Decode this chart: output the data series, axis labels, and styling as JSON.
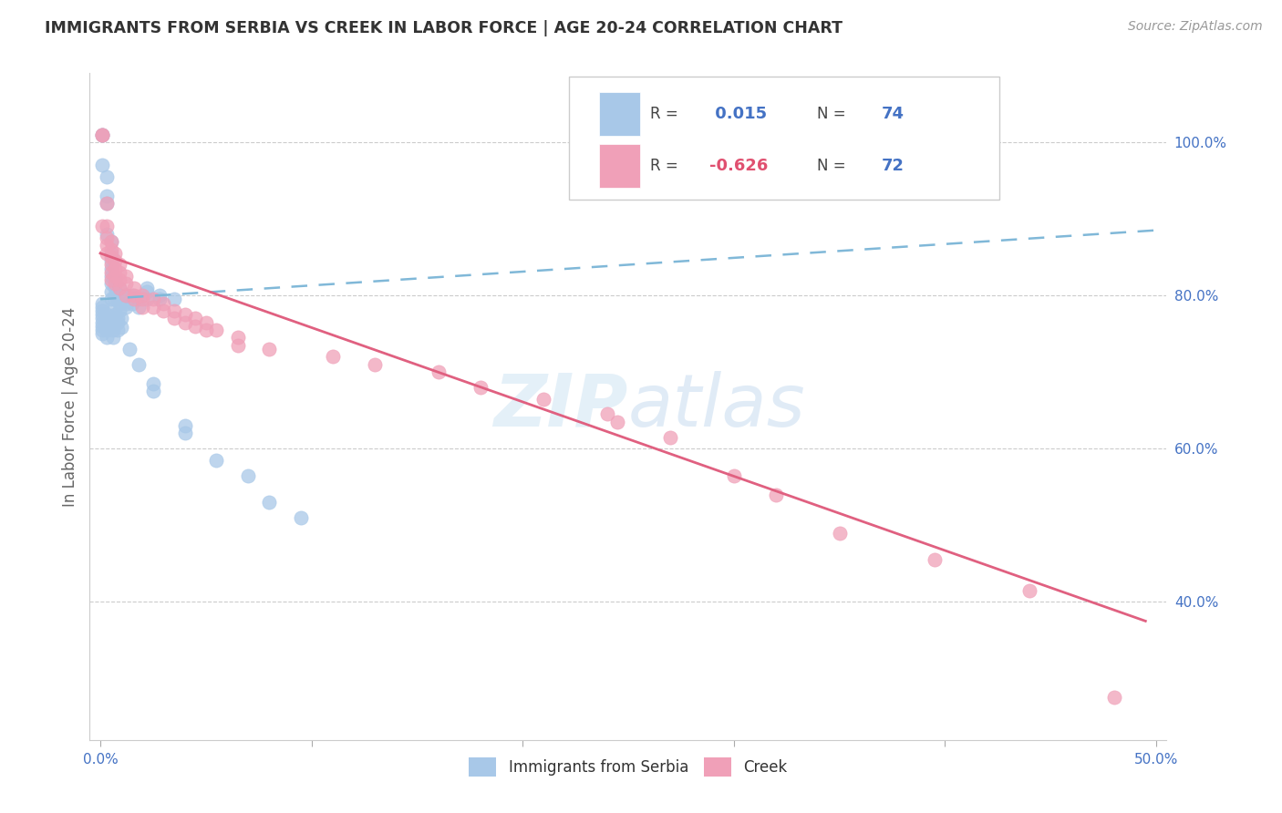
{
  "title": "IMMIGRANTS FROM SERBIA VS CREEK IN LABOR FORCE | AGE 20-24 CORRELATION CHART",
  "source": "Source: ZipAtlas.com",
  "ylabel": "In Labor Force | Age 20-24",
  "x_tick_labels": [
    "0.0%",
    "",
    "",
    "",
    "",
    "50.0%"
  ],
  "x_tick_values": [
    0.0,
    0.1,
    0.2,
    0.3,
    0.4,
    0.5
  ],
  "y_tick_labels": [
    "40.0%",
    "60.0%",
    "80.0%",
    "100.0%"
  ],
  "y_tick_values": [
    0.4,
    0.6,
    0.8,
    1.0
  ],
  "xlim": [
    -0.005,
    0.505
  ],
  "ylim": [
    0.22,
    1.09
  ],
  "serbia_color": "#a8c8e8",
  "creek_color": "#f0a0b8",
  "serbia_line_color": "#80b8d8",
  "creek_line_color": "#e06080",
  "serbia_R": "0.015",
  "serbia_N": "74",
  "creek_R": "-0.626",
  "creek_N": "72",
  "legend_serbia_label": "Immigrants from Serbia",
  "legend_creek_label": "Creek",
  "watermark": "ZIPatlas",
  "serbia_points_x": [
    0.001,
    0.001,
    0.001,
    0.003,
    0.003,
    0.003,
    0.003,
    0.005,
    0.005,
    0.005,
    0.005,
    0.005,
    0.005,
    0.005,
    0.005,
    0.007,
    0.007,
    0.007,
    0.007,
    0.007,
    0.007,
    0.009,
    0.009,
    0.009,
    0.009,
    0.012,
    0.012,
    0.012,
    0.015,
    0.015,
    0.018,
    0.018,
    0.022,
    0.022,
    0.022,
    0.028,
    0.028,
    0.035,
    0.001,
    0.001,
    0.001,
    0.001,
    0.001,
    0.001,
    0.001,
    0.001,
    0.001,
    0.003,
    0.003,
    0.003,
    0.003,
    0.003,
    0.006,
    0.006,
    0.006,
    0.006,
    0.008,
    0.008,
    0.008,
    0.01,
    0.01,
    0.014,
    0.018,
    0.025,
    0.025,
    0.04,
    0.04,
    0.055,
    0.07,
    0.08,
    0.095
  ],
  "serbia_points_y": [
    1.01,
    1.01,
    0.97,
    0.955,
    0.93,
    0.92,
    0.88,
    0.87,
    0.855,
    0.845,
    0.835,
    0.825,
    0.815,
    0.805,
    0.795,
    0.82,
    0.81,
    0.8,
    0.795,
    0.785,
    0.775,
    0.81,
    0.8,
    0.79,
    0.78,
    0.8,
    0.79,
    0.785,
    0.8,
    0.79,
    0.795,
    0.785,
    0.81,
    0.805,
    0.795,
    0.8,
    0.795,
    0.795,
    0.79,
    0.785,
    0.78,
    0.775,
    0.77,
    0.765,
    0.76,
    0.755,
    0.75,
    0.775,
    0.77,
    0.765,
    0.755,
    0.745,
    0.77,
    0.76,
    0.755,
    0.745,
    0.77,
    0.765,
    0.755,
    0.77,
    0.758,
    0.73,
    0.71,
    0.685,
    0.675,
    0.63,
    0.62,
    0.585,
    0.565,
    0.53,
    0.51
  ],
  "creek_points_x": [
    0.001,
    0.001,
    0.001,
    0.003,
    0.003,
    0.003,
    0.003,
    0.003,
    0.005,
    0.005,
    0.005,
    0.005,
    0.005,
    0.005,
    0.007,
    0.007,
    0.007,
    0.007,
    0.007,
    0.009,
    0.009,
    0.009,
    0.009,
    0.012,
    0.012,
    0.012,
    0.016,
    0.016,
    0.016,
    0.02,
    0.02,
    0.02,
    0.025,
    0.025,
    0.03,
    0.03,
    0.035,
    0.035,
    0.04,
    0.04,
    0.045,
    0.045,
    0.05,
    0.05,
    0.055,
    0.065,
    0.065,
    0.08,
    0.11,
    0.13,
    0.16,
    0.18,
    0.21,
    0.24,
    0.245,
    0.27,
    0.3,
    0.32,
    0.35,
    0.395,
    0.44,
    0.48
  ],
  "creek_points_y": [
    1.01,
    1.01,
    0.89,
    0.92,
    0.89,
    0.875,
    0.865,
    0.855,
    0.87,
    0.86,
    0.85,
    0.84,
    0.83,
    0.82,
    0.855,
    0.845,
    0.835,
    0.825,
    0.815,
    0.84,
    0.83,
    0.82,
    0.81,
    0.825,
    0.815,
    0.8,
    0.81,
    0.8,
    0.795,
    0.8,
    0.795,
    0.785,
    0.795,
    0.785,
    0.79,
    0.78,
    0.78,
    0.77,
    0.775,
    0.765,
    0.77,
    0.76,
    0.765,
    0.755,
    0.755,
    0.745,
    0.735,
    0.73,
    0.72,
    0.71,
    0.7,
    0.68,
    0.665,
    0.645,
    0.635,
    0.615,
    0.565,
    0.54,
    0.49,
    0.455,
    0.415,
    0.275
  ],
  "serbia_trend_x": [
    0.0,
    0.5
  ],
  "serbia_trend_y": [
    0.795,
    0.885
  ],
  "creek_trend_x": [
    0.0,
    0.495
  ],
  "creek_trend_y": [
    0.855,
    0.375
  ]
}
